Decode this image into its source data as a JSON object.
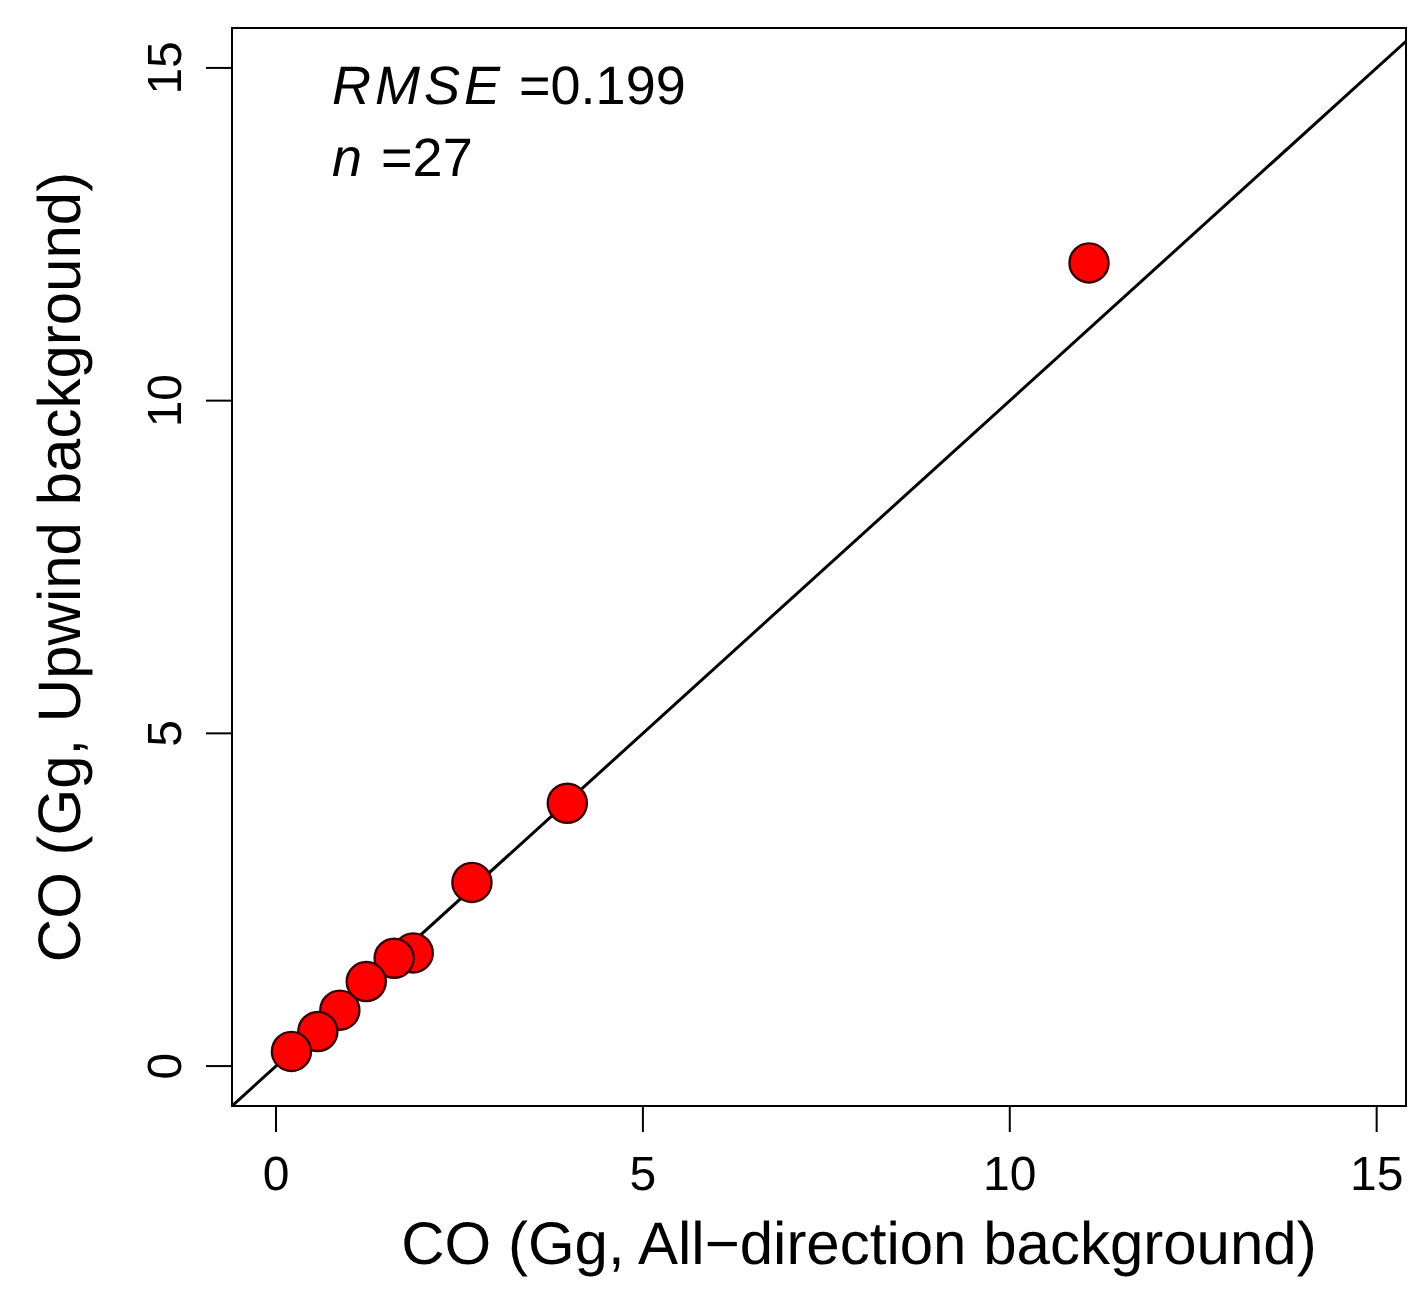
{
  "chart_data": {
    "type": "scatter",
    "xlabel": "CO (Gg, All−direction background)",
    "ylabel": "CO (Gg, Upwind background)",
    "xlim": [
      -0.6,
      15.4
    ],
    "ylim": [
      -0.6,
      15.6
    ],
    "xticks": [
      0,
      5,
      10,
      15
    ],
    "yticks": [
      0,
      5,
      10,
      15
    ],
    "grid": false,
    "marker": "circle",
    "annotations": [
      "RMSE =0.199",
      "n =27"
    ],
    "series": [
      {
        "type": "line",
        "color": "#000000",
        "x": [
          -0.6,
          15.4
        ],
        "values": [
          -0.6,
          15.4
        ],
        "line_style": "solid",
        "marker": "none"
      },
      {
        "color": "#ff0000",
        "x": [
          11.08,
          3.97,
          2.67,
          1.87,
          1.61,
          1.23,
          0.87,
          0.57,
          0.21
        ],
        "values": [
          12.07,
          3.95,
          2.76,
          1.7,
          1.62,
          1.27,
          0.84,
          0.52,
          0.22
        ]
      }
    ]
  }
}
